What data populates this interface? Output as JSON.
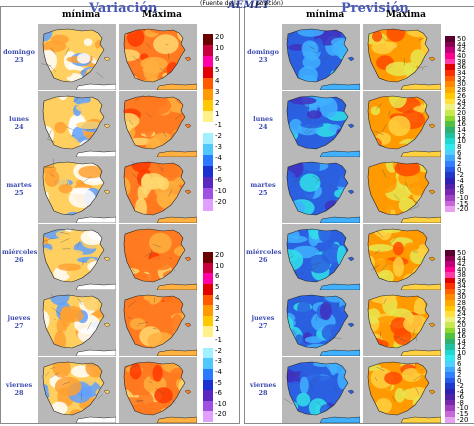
{
  "header": {
    "variation_title": "Variación",
    "forecast_title": "Previsión",
    "note_left": "(Fuente de la",
    "logo_text": "AEMET",
    "note_right": "posición)"
  },
  "columns": {
    "min": "mínima",
    "max": "Máxima"
  },
  "days": [
    {
      "name": "domingo",
      "num": "23"
    },
    {
      "name": "lunes",
      "num": "24"
    },
    {
      "name": "martes",
      "num": "25"
    },
    {
      "name": "miércoles",
      "num": "26"
    },
    {
      "name": "jueves",
      "num": "27"
    },
    {
      "name": "viernes",
      "num": "28"
    }
  ],
  "variation_legend": {
    "labels": [
      "20",
      "10",
      "6",
      "5",
      "4",
      "3",
      "2",
      "1",
      "-1",
      "-2",
      "-3",
      "-4",
      "-5",
      "-6",
      "-10",
      "-20"
    ],
    "colors": [
      "#6a0000",
      "#c8003c",
      "#ff00a8",
      "#e00000",
      "#ff5a00",
      "#ff9a00",
      "#ffc800",
      "#fff08a",
      "#ffffff",
      "#a0f0ff",
      "#50c8ff",
      "#2a7aff",
      "#1a30d0",
      "#5a28c0",
      "#a050e0",
      "#e0a0ff"
    ]
  },
  "forecast_legend": {
    "labels": [
      "50",
      "44",
      "42",
      "40",
      "38",
      "36",
      "34",
      "32",
      "30",
      "28",
      "26",
      "24",
      "22",
      "20",
      "18",
      "16",
      "14",
      "12",
      "10",
      "8",
      "6",
      "4",
      "2",
      "0",
      "-2",
      "-4",
      "-6",
      "-8",
      "-10",
      "-15",
      "-20"
    ],
    "colors": [
      "#5a0030",
      "#8a0050",
      "#c0007a",
      "#ff0090",
      "#ff3caa",
      "#e00000",
      "#ff3000",
      "#ff6000",
      "#ff8a00",
      "#ffaa00",
      "#ffc800",
      "#ffe040",
      "#f0f080",
      "#c8e850",
      "#90d830",
      "#50c040",
      "#30b070",
      "#20c0a0",
      "#20d8d0",
      "#30e8f0",
      "#50d0ff",
      "#40a8ff",
      "#3080ff",
      "#2858e8",
      "#2038c8",
      "#3020b0",
      "#5020a8",
      "#7828b0",
      "#a040c0",
      "#c868d8",
      "#e8a0f0"
    ]
  }
}
